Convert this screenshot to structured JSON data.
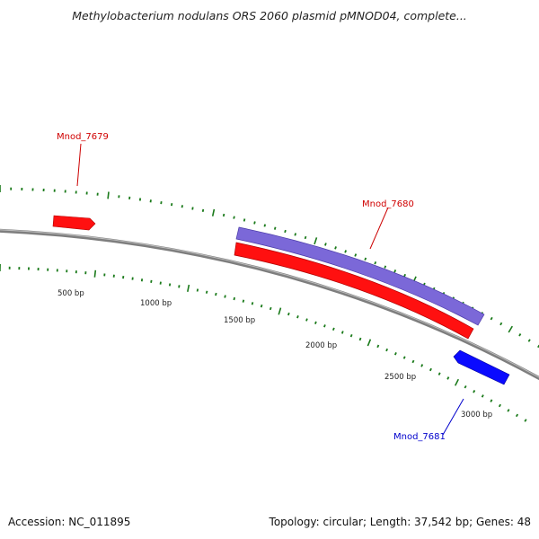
{
  "title": "Methylobacterium nodulans ORS 2060 plasmid pMNOD04, complete...",
  "footer": {
    "accession": "Accession: NC_011895",
    "summary": "Topology: circular; Length: 37,542 bp; Genes: 48"
  },
  "ticks": [
    {
      "label": "500 bp"
    },
    {
      "label": "1000 bp"
    },
    {
      "label": "1500 bp"
    },
    {
      "label": "2000 bp"
    },
    {
      "label": "2500 bp"
    },
    {
      "label": "3000 bp"
    }
  ],
  "genes": [
    {
      "name": "Mnod_7679",
      "color": "#ff0000"
    },
    {
      "name": "Mnod_7680",
      "color": "#ff0000",
      "secondary_color": "#7b68d8"
    },
    {
      "name": "Mnod_7681",
      "color": "#0000ff"
    }
  ],
  "colors": {
    "backbone": "#808080",
    "tick_marks": "#1a7a1a",
    "forward_gene": "#ff0000",
    "reverse_gene": "#0000ff",
    "cds_highlight": "#7b68d8"
  }
}
